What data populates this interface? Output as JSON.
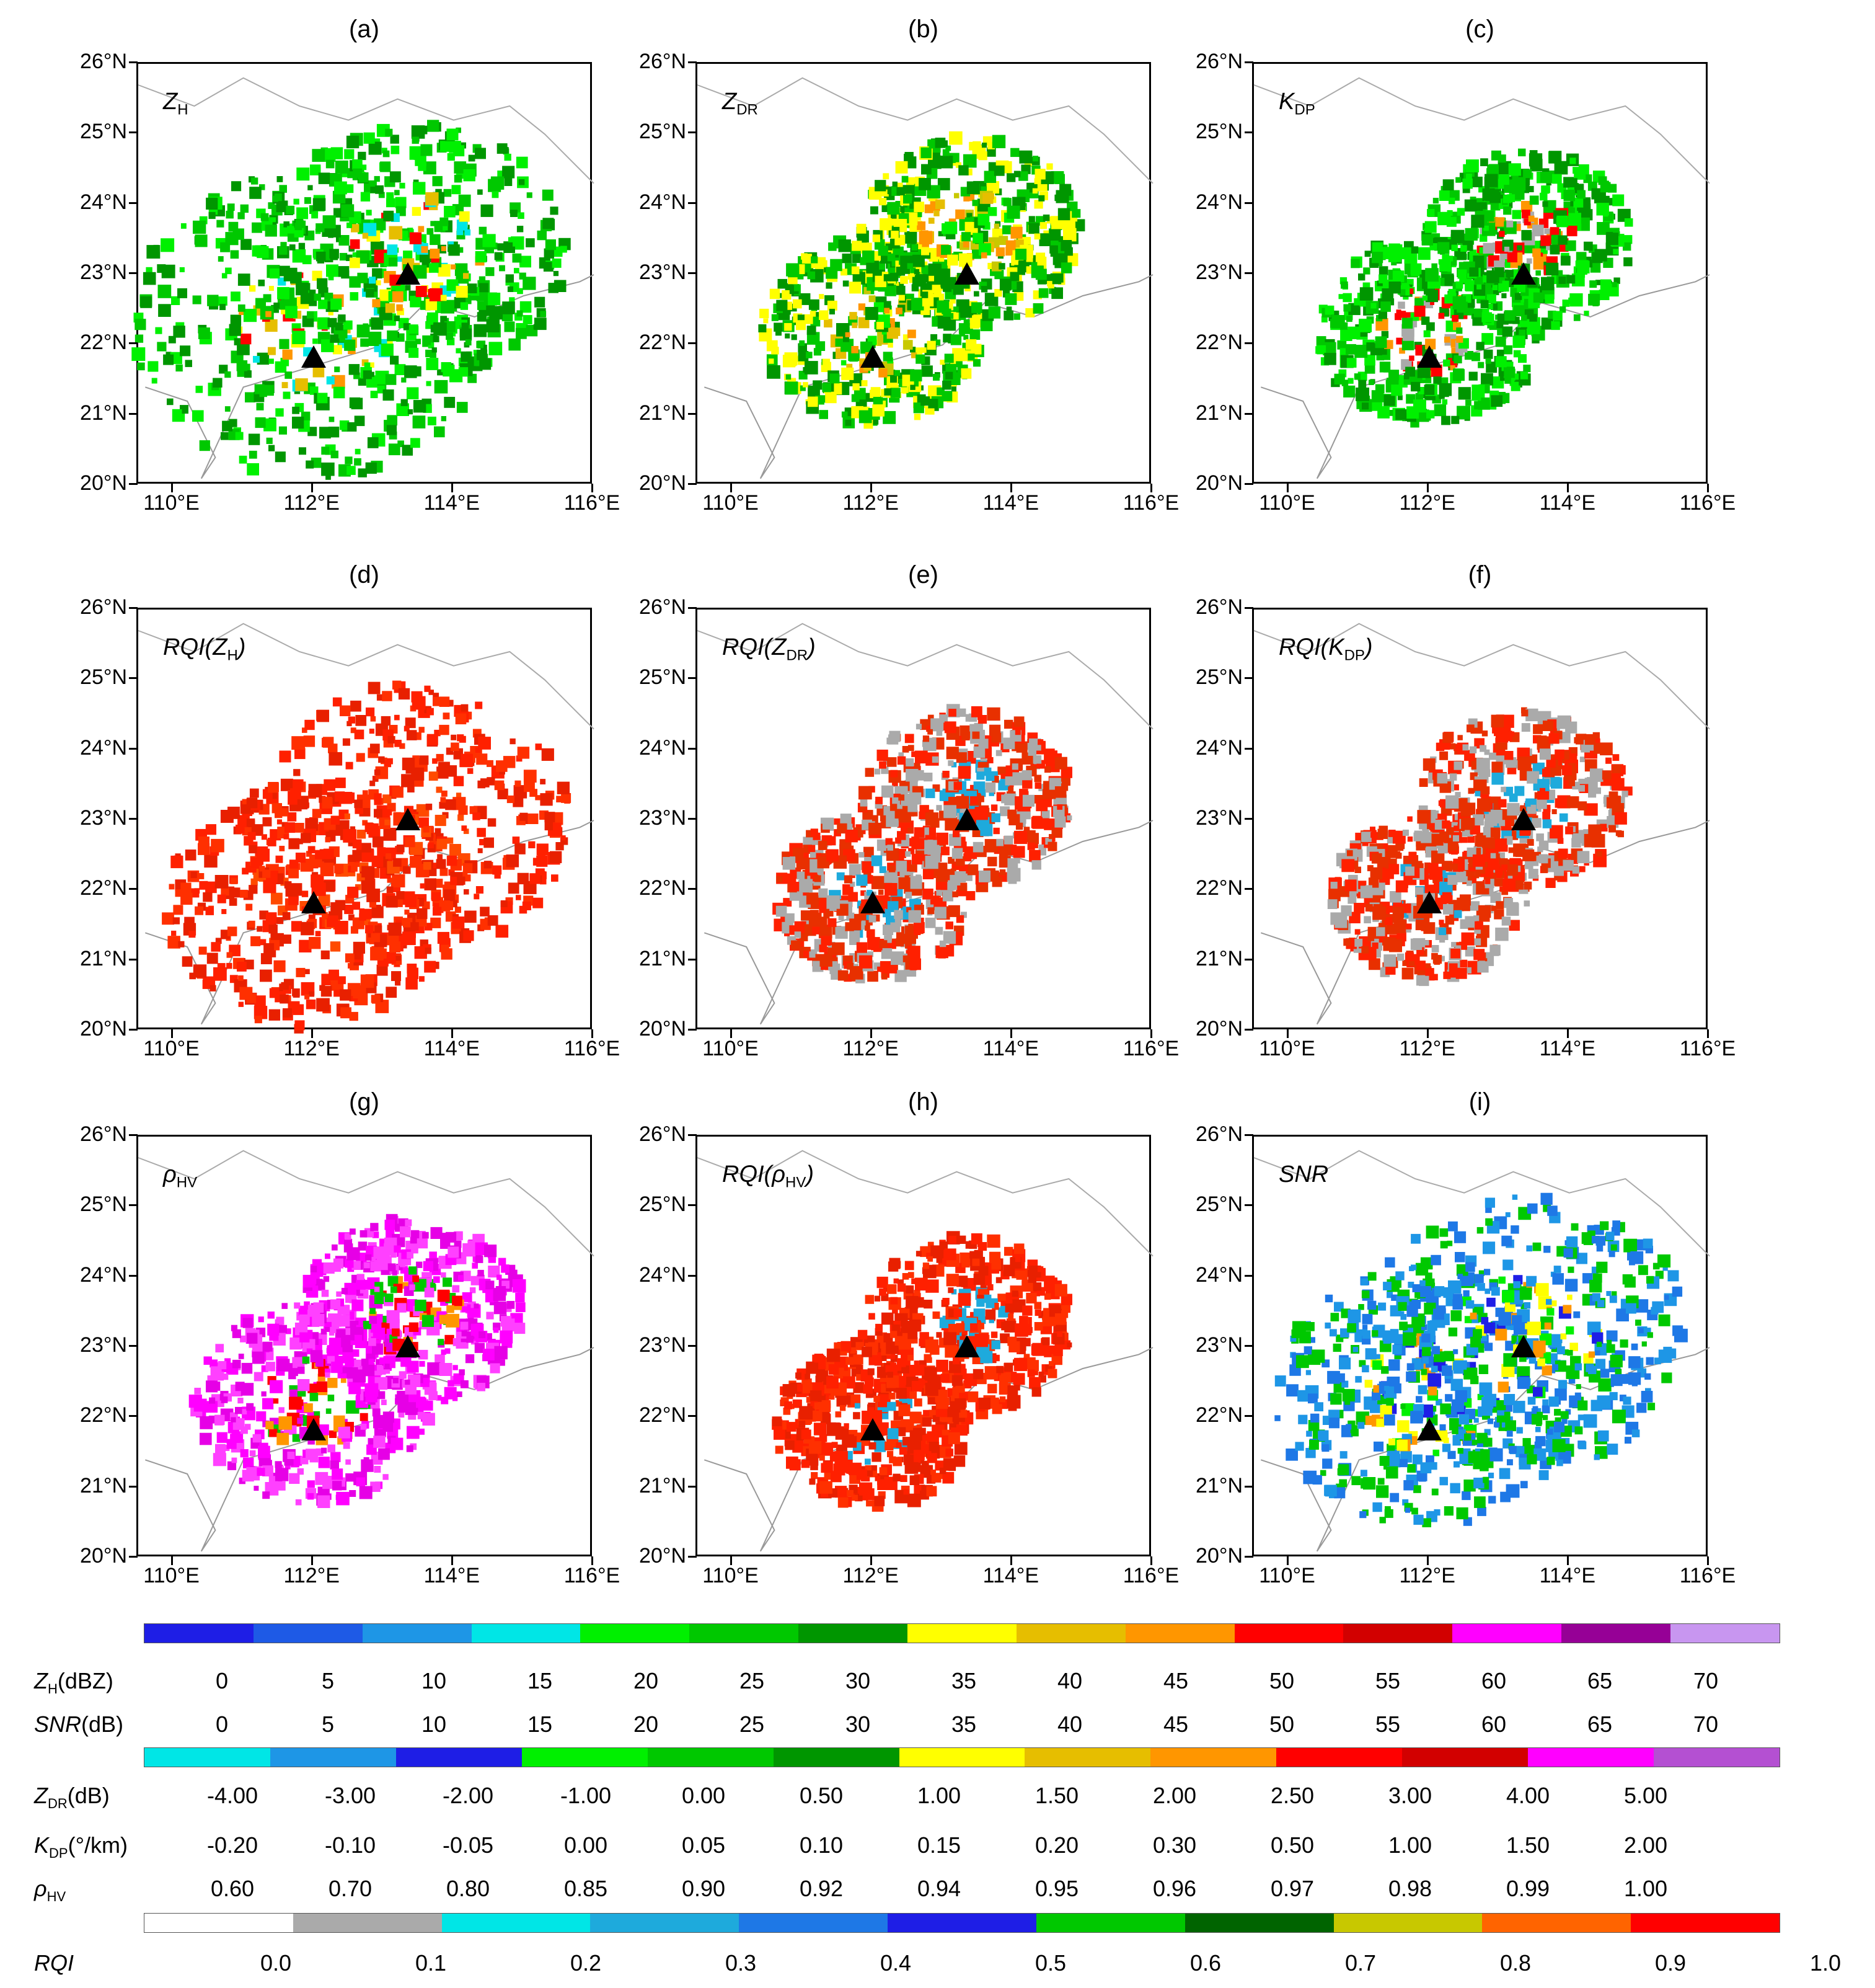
{
  "panels": [
    {
      "id": "a",
      "title": "(a)",
      "label_main": "Z",
      "label_sub": "H",
      "label_suffix": "",
      "label_prefix": ""
    },
    {
      "id": "b",
      "title": "(b)",
      "label_main": "Z",
      "label_sub": "DR",
      "label_suffix": "",
      "label_prefix": ""
    },
    {
      "id": "c",
      "title": "(c)",
      "label_main": "K",
      "label_sub": "DP",
      "label_suffix": "",
      "label_prefix": ""
    },
    {
      "id": "d",
      "title": "(d)",
      "label_main": "Z",
      "label_sub": "H",
      "label_suffix": ")",
      "label_prefix": "RQI("
    },
    {
      "id": "e",
      "title": "(e)",
      "label_main": "Z",
      "label_sub": "DR",
      "label_suffix": ")",
      "label_prefix": "RQI("
    },
    {
      "id": "f",
      "title": "(f)",
      "label_main": "K",
      "label_sub": "DP",
      "label_suffix": ")",
      "label_prefix": "RQI("
    },
    {
      "id": "g",
      "title": "(g)",
      "label_main": "ρ",
      "label_sub": "HV",
      "label_suffix": "",
      "label_prefix": ""
    },
    {
      "id": "h",
      "title": "(h)",
      "label_main": "ρ",
      "label_sub": "HV",
      "label_suffix": ")",
      "label_prefix": "RQI("
    },
    {
      "id": "i",
      "title": "(i)",
      "label_main": "SNR",
      "label_sub": "",
      "label_suffix": "",
      "label_prefix": ""
    }
  ],
  "y_ticks": [
    "26°N",
    "25°N",
    "24°N",
    "23°N",
    "22°N",
    "21°N",
    "20°N"
  ],
  "x_ticks": [
    "110°E",
    "112°E",
    "114°E",
    "116°E"
  ],
  "stations": [
    {
      "name": "",
      "lon": 112.0,
      "lat": 21.8
    },
    {
      "name": "",
      "lon": 113.35,
      "lat": 22.98
    }
  ],
  "colorbar1": {
    "colors": [
      "#1e1ee6",
      "#1e5ae6",
      "#1e96e6",
      "#00e6e6",
      "#00f000",
      "#00c800",
      "#009600",
      "#ffff00",
      "#e6be00",
      "#ff9600",
      "#ff0000",
      "#d20000",
      "#ff00ff",
      "#960096",
      "#c896f0"
    ]
  },
  "colorbar2": {
    "colors": [
      "#00e6e6",
      "#1e96e6",
      "#1e1ee6",
      "#00f000",
      "#00c800",
      "#009600",
      "#ffff00",
      "#e6be00",
      "#ff9600",
      "#ff0000",
      "#d20000",
      "#ff00ff",
      "#b450d2"
    ]
  },
  "colorbar3": {
    "colors": [
      "#ffffff",
      "#aaaaaa",
      "#00e6e6",
      "#1eaadc",
      "#1e78e6",
      "#1e1ee6",
      "#00c800",
      "#006400",
      "#c8c800",
      "#ff6400",
      "#ff0000"
    ]
  },
  "legend": {
    "zh_label": {
      "main": "Z",
      "sub": "H",
      "unit": "(dBZ)"
    },
    "zh_values": [
      "0",
      "5",
      "10",
      "15",
      "20",
      "25",
      "30",
      "35",
      "40",
      "45",
      "50",
      "55",
      "60",
      "65",
      "70"
    ],
    "snr_label": {
      "main": "SNR",
      "unit": "(dB)"
    },
    "snr_values": [
      "0",
      "5",
      "10",
      "15",
      "20",
      "25",
      "30",
      "35",
      "40",
      "45",
      "50",
      "55",
      "60",
      "65",
      "70"
    ],
    "zdr_label": {
      "main": "Z",
      "sub": "DR",
      "unit": "(dB)"
    },
    "zdr_values": [
      "-4.00",
      "-3.00",
      "-2.00",
      "-1.00",
      "0.00",
      "0.50",
      "1.00",
      "1.50",
      "2.00",
      "2.50",
      "3.00",
      "4.00",
      "5.00"
    ],
    "kdp_label": {
      "main": "K",
      "sub": "DP",
      "unit": "(°/km)"
    },
    "kdp_values": [
      "-0.20",
      "-0.10",
      "-0.05",
      "0.00",
      "0.05",
      "0.10",
      "0.15",
      "0.20",
      "0.30",
      "0.50",
      "1.00",
      "1.50",
      "2.00"
    ],
    "rhv_label": {
      "main": "ρ",
      "sub": "HV",
      "unit": ""
    },
    "rhv_values": [
      "0.60",
      "0.70",
      "0.80",
      "0.85",
      "0.90",
      "0.92",
      "0.94",
      "0.95",
      "0.96",
      "0.97",
      "0.98",
      "0.99",
      "1.00"
    ],
    "rqi_label": {
      "main": "RQI"
    },
    "rqi_values": [
      "0.0",
      "0.1",
      "0.2",
      "0.3",
      "0.4",
      "0.5",
      "0.6",
      "0.7",
      "0.8",
      "0.9",
      "1.0"
    ]
  }
}
